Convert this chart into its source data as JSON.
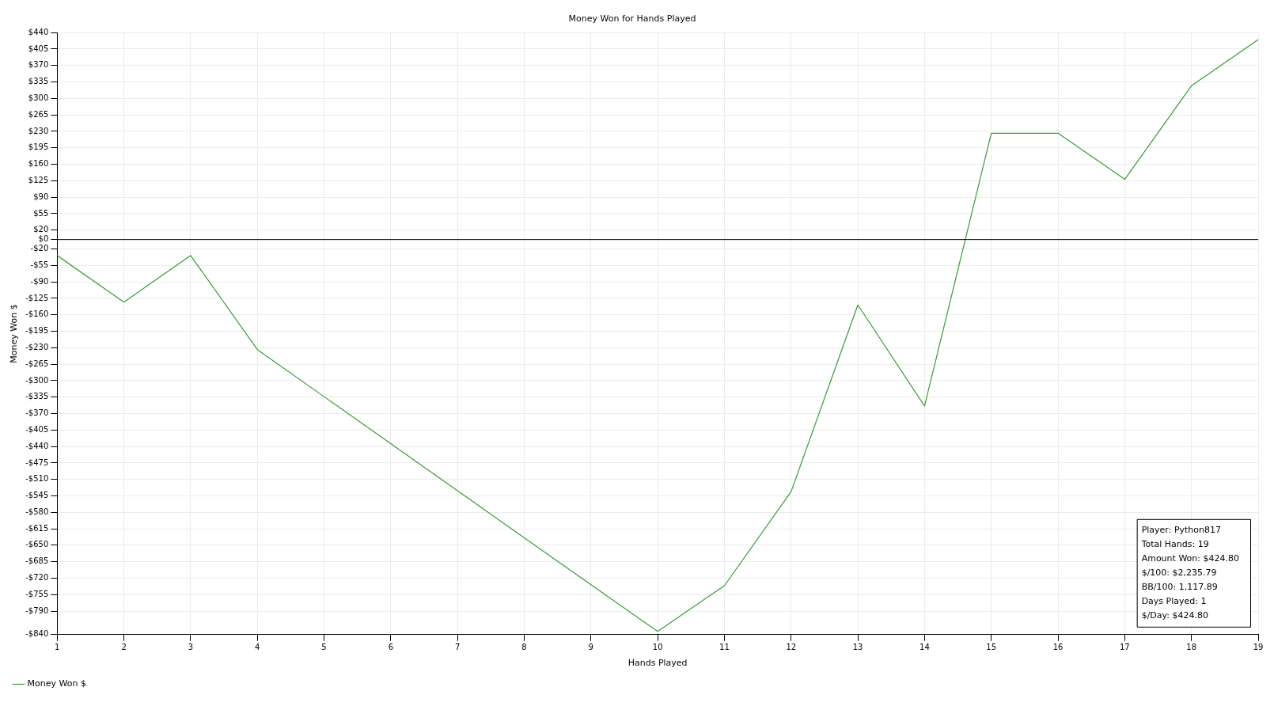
{
  "chart_data": {
    "type": "line",
    "title": "Money Won for Hands Played",
    "xlabel": "Hands Played",
    "ylabel": "Money Won $",
    "x": [
      1,
      2,
      3,
      4,
      5,
      6,
      7,
      8,
      9,
      10,
      11,
      12,
      13,
      14,
      15,
      16,
      17,
      18,
      19
    ],
    "series": [
      {
        "name": "Money Won $",
        "color": "#3a9a3a",
        "values": [
          -34,
          -133,
          -34,
          -234,
          -334,
          -434,
          -534,
          -634,
          -734,
          -833,
          -736,
          -536,
          -139,
          -354,
          226,
          226,
          128,
          327,
          425
        ]
      }
    ],
    "xlim": [
      1,
      19
    ],
    "xticks": [
      1,
      2,
      3,
      4,
      5,
      6,
      7,
      8,
      9,
      10,
      11,
      12,
      13,
      14,
      15,
      16,
      17,
      18,
      19
    ],
    "ylim": [
      -840,
      440
    ],
    "yticks": [
      {
        "value": 440,
        "label": "$440"
      },
      {
        "value": 405,
        "label": "$405"
      },
      {
        "value": 370,
        "label": "$370"
      },
      {
        "value": 335,
        "label": "$335"
      },
      {
        "value": 300,
        "label": "$300"
      },
      {
        "value": 265,
        "label": "$265"
      },
      {
        "value": 230,
        "label": "$230"
      },
      {
        "value": 195,
        "label": "$195"
      },
      {
        "value": 160,
        "label": "$160"
      },
      {
        "value": 125,
        "label": "$125"
      },
      {
        "value": 90,
        "label": "$90"
      },
      {
        "value": 55,
        "label": "$55"
      },
      {
        "value": 20,
        "label": "$20"
      },
      {
        "value": 0,
        "label": "$0"
      },
      {
        "value": -20,
        "label": "-$20"
      },
      {
        "value": -55,
        "label": "-$55"
      },
      {
        "value": -90,
        "label": "-$90"
      },
      {
        "value": -125,
        "label": "-$125"
      },
      {
        "value": -160,
        "label": "-$160"
      },
      {
        "value": -195,
        "label": "-$195"
      },
      {
        "value": -230,
        "label": "-$230"
      },
      {
        "value": -265,
        "label": "-$265"
      },
      {
        "value": -300,
        "label": "-$300"
      },
      {
        "value": -335,
        "label": "-$335"
      },
      {
        "value": -370,
        "label": "-$370"
      },
      {
        "value": -405,
        "label": "-$405"
      },
      {
        "value": -440,
        "label": "-$440"
      },
      {
        "value": -475,
        "label": "-$475"
      },
      {
        "value": -510,
        "label": "-$510"
      },
      {
        "value": -545,
        "label": "-$545"
      },
      {
        "value": -580,
        "label": "-$580"
      },
      {
        "value": -615,
        "label": "-$615"
      },
      {
        "value": -650,
        "label": "-$650"
      },
      {
        "value": -685,
        "label": "-$685"
      },
      {
        "value": -720,
        "label": "-$720"
      },
      {
        "value": -755,
        "label": "-$755"
      },
      {
        "value": -790,
        "label": "-$790"
      },
      {
        "value": -840,
        "label": "-$840"
      }
    ],
    "ref_lines": [
      {
        "axis": "y",
        "value": 0,
        "color": "#000000"
      }
    ],
    "annotations": [
      "Player: Python817",
      "Total Hands: 19",
      "Amount Won: $424.80",
      "$/100: $2,235.79",
      "BB/100: 1,117.89",
      "Days Played: 1",
      "$/Day: $424.80"
    ],
    "grid": true,
    "legend": "bottom left",
    "marker": "none",
    "line_style": "solid"
  }
}
